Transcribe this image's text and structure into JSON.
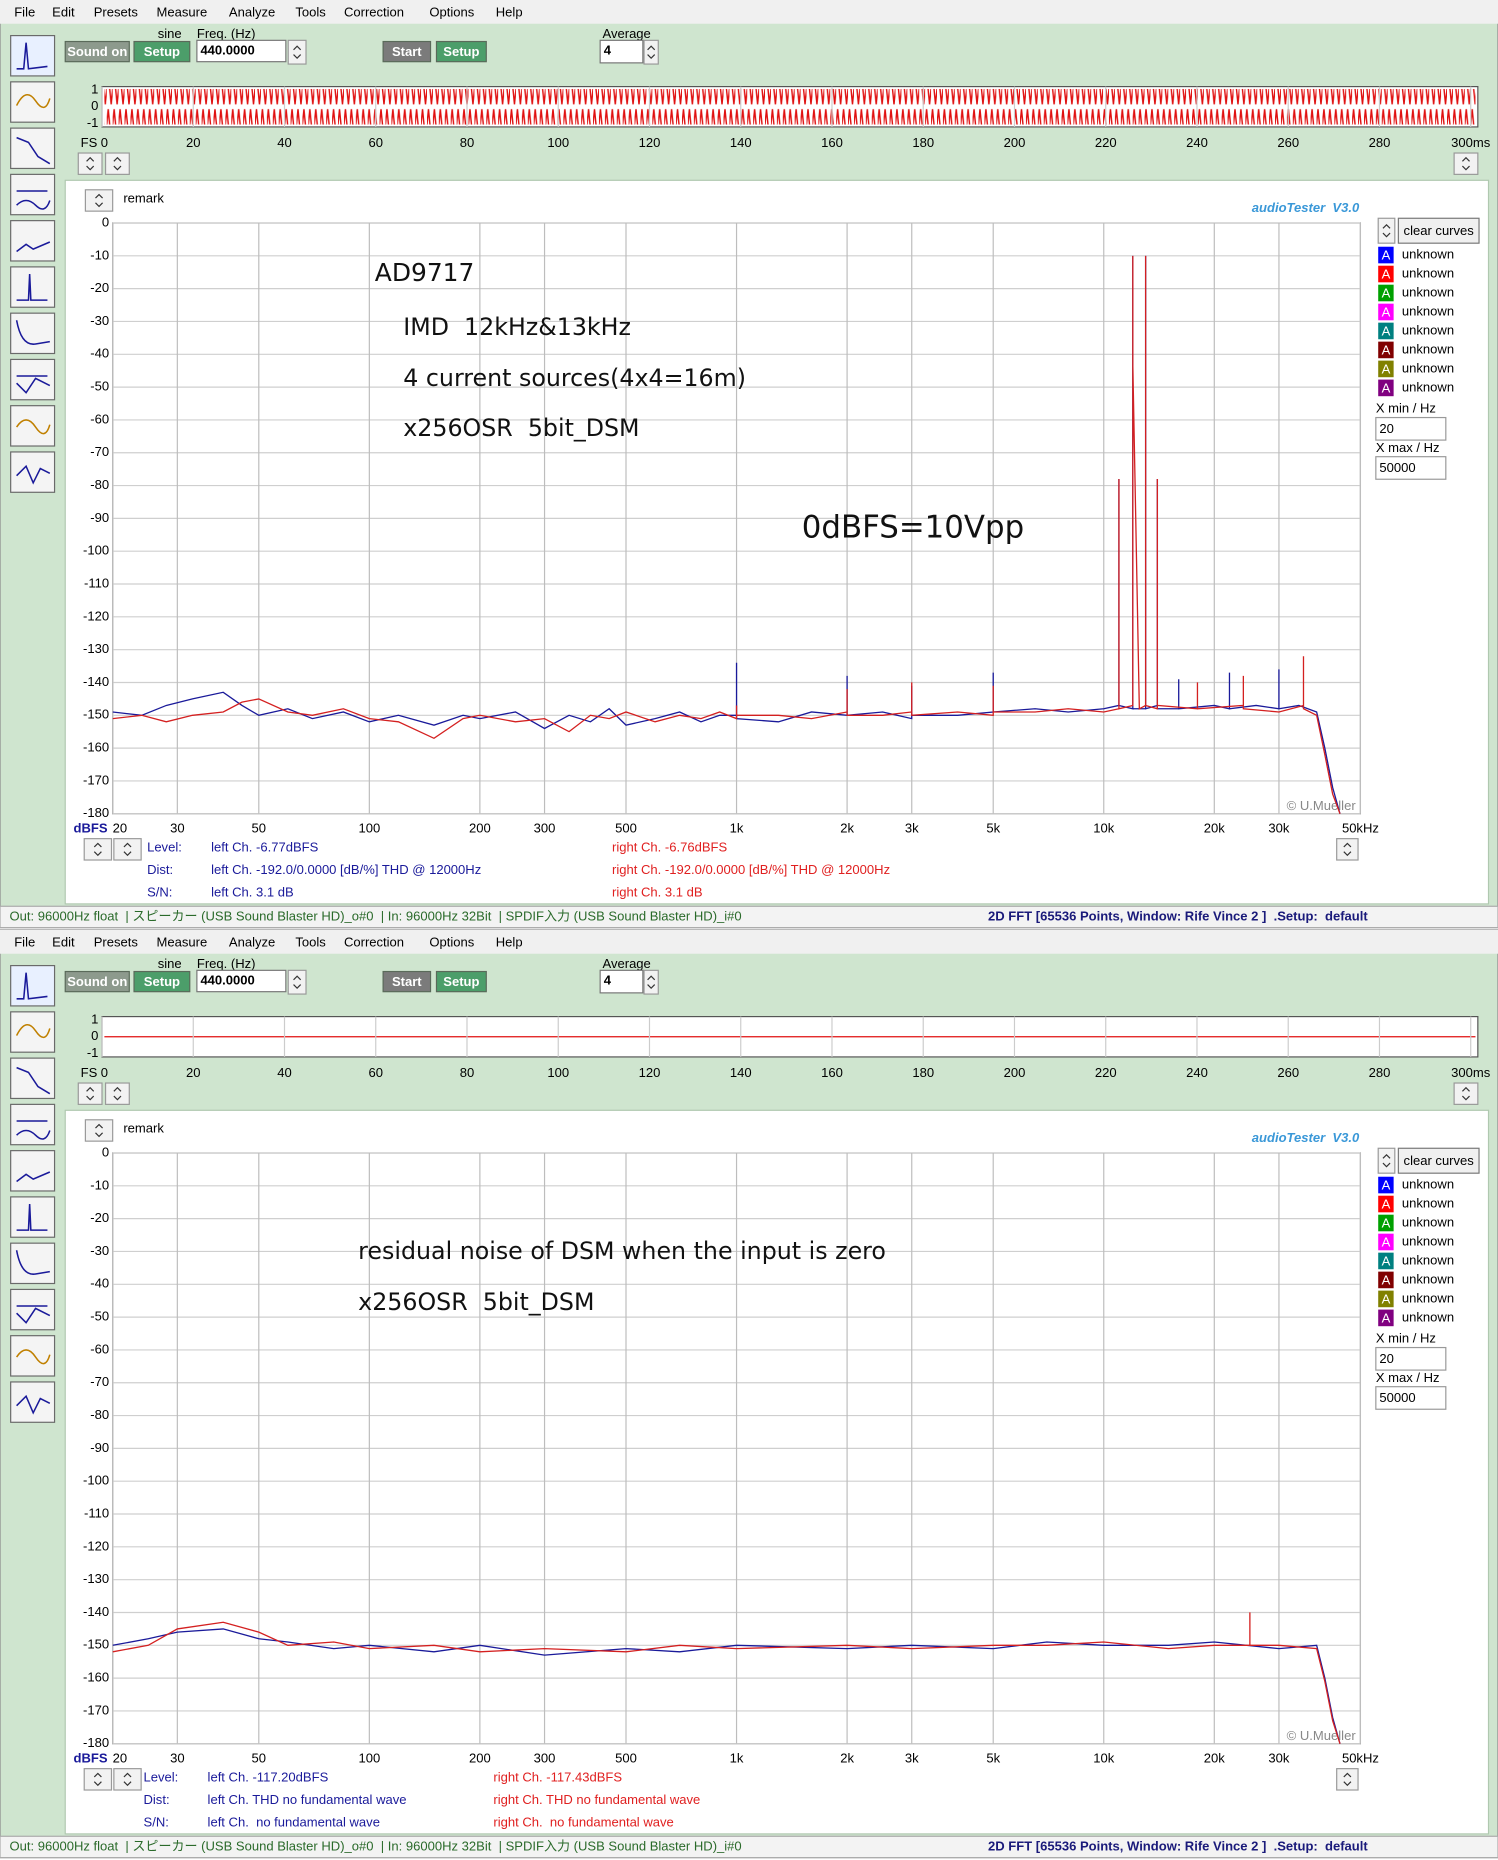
{
  "windows": [
    {
      "menu": [
        "File",
        "Edit",
        "Presets",
        "Measure",
        "Analyze",
        "Tools",
        "Correction",
        "Options",
        "Help"
      ],
      "toolbar": {
        "signal": "sine",
        "sound_on": "Sound on",
        "setup1": "Setup",
        "freq_label": "Freq. (Hz)",
        "freq": "440.0000",
        "start": "Start",
        "setup2": "Setup",
        "average_label": "Average",
        "average": "4"
      },
      "scope": {
        "ylim": [
          -1,
          1
        ],
        "yticks": [
          1,
          0,
          -1
        ],
        "xlabel": "FS",
        "xlim": [
          0,
          300
        ],
        "xticks": [
          0,
          20,
          40,
          60,
          80,
          100,
          120,
          140,
          160,
          180,
          200,
          220,
          240,
          260,
          280,
          {
            "value": 300,
            "label": "300ms"
          }
        ]
      },
      "fft": {
        "type": "line",
        "remark": "remark",
        "brand": "audioTester  V3.0",
        "ylabel": "dBFS",
        "copyright": "© U.Mueller",
        "log_x": true,
        "grid": true,
        "xlim": [
          20,
          50000
        ],
        "ylim": [
          -180,
          0
        ],
        "yticks": [
          0,
          -10,
          -20,
          -30,
          -40,
          -50,
          -60,
          -70,
          -80,
          -90,
          -100,
          -110,
          -120,
          -130,
          -140,
          -150,
          -160,
          -170,
          -180
        ],
        "xticks": [
          20,
          30,
          50,
          100,
          200,
          300,
          500,
          {
            "value": 1000,
            "label": "1k"
          },
          {
            "value": 2000,
            "label": "2k"
          },
          {
            "value": 3000,
            "label": "3k"
          },
          {
            "value": 5000,
            "label": "5k"
          },
          {
            "value": 10000,
            "label": "10k"
          },
          {
            "value": 20000,
            "label": "20k"
          },
          {
            "value": 30000,
            "label": "30k"
          },
          {
            "value": 50000,
            "label": "50kHz"
          }
        ],
        "annotations": [
          "AD9717",
          "IMD  12kHz&13kHz",
          "4 current sources(4x4=16m)",
          "x256OSR  5bit_DSM",
          "0dBFS=10Vpp"
        ],
        "series": [
          {
            "color": "#1a1a9a",
            "x": [
              20,
              24,
              28,
              33,
              40,
              45,
              50,
              60,
              70,
              85,
              100,
              120,
              150,
              180,
              200,
              250,
              300,
              350,
              400,
              450,
              500,
              600,
              700,
              800,
              900,
              1000,
              1000,
              1000,
              1300,
              1600,
              2000,
              2000,
              2000,
              2500,
              3000,
              3000,
              3000,
              4000,
              5000,
              5000,
              5000,
              6500,
              8000,
              10000,
              11000,
              11000,
              11000,
              12000,
              12000,
              12000,
              13000,
              13000,
              13000,
              14000,
              14000,
              14000,
              16000,
              16000,
              16000,
              20000,
              22000,
              22000,
              22000,
              26000,
              30000,
              30000,
              30000,
              34000,
              38000,
              40000,
              42000,
              44000
            ],
            "values": [
              -149,
              -150,
              -147,
              -145,
              -143,
              -147,
              -150,
              -148,
              -151,
              -149,
              -152,
              -150,
              -153,
              -150,
              -151,
              -149,
              -154,
              -150,
              -152,
              -148,
              -153,
              -151,
              -149,
              -152,
              -150,
              -150,
              -134,
              -151,
              -152,
              -149,
              -150,
              -138,
              -150,
              -149,
              -151,
              -141,
              -150,
              -150,
              -149,
              -137,
              -149,
              -148,
              -149,
              -148,
              -147,
              -78,
              -147,
              -148,
              -10,
              -148,
              -148,
              -10,
              -148,
              -147,
              -78,
              -148,
              -148,
              -139,
              -148,
              -147,
              -148,
              -137,
              -148,
              -147,
              -148,
              -136,
              -148,
              -147,
              -149,
              -160,
              -172,
              -180
            ]
          },
          {
            "color": "#d42020",
            "x": [
              20,
              24,
              28,
              33,
              40,
              45,
              50,
              60,
              70,
              85,
              100,
              120,
              150,
              180,
              200,
              250,
              300,
              350,
              400,
              450,
              500,
              600,
              700,
              800,
              900,
              1000,
              1000,
              1000,
              1300,
              1600,
              2000,
              2000,
              2000,
              2500,
              3000,
              3000,
              3000,
              4000,
              5000,
              5000,
              5000,
              6500,
              8000,
              10000,
              11000,
              11000,
              11000,
              12000,
              12000,
              12000,
              12500,
              13000,
              13000,
              13000,
              14000,
              14000,
              14000,
              18000,
              18000,
              18000,
              24000,
              24000,
              24000,
              30000,
              35000,
              35000,
              35000,
              38000,
              40000,
              42000,
              44000
            ],
            "values": [
              -151,
              -150,
              -152,
              -150,
              -149,
              -146,
              -145,
              -149,
              -150,
              -148,
              -151,
              -152,
              -157,
              -151,
              -150,
              -152,
              -151,
              -155,
              -150,
              -151,
              -149,
              -152,
              -150,
              -151,
              -149,
              -151,
              -147,
              -150,
              -150,
              -151,
              -149,
              -142,
              -150,
              -150,
              -149,
              -140,
              -150,
              -149,
              -150,
              -141,
              -149,
              -149,
              -148,
              -149,
              -148,
              -78,
              -148,
              -147,
              -10,
              -43,
              -148,
              -147,
              -10,
              -147,
              -148,
              -78,
              -147,
              -148,
              -140,
              -148,
              -147,
              -138,
              -148,
              -149,
              -147,
              -132,
              -148,
              -150,
              -162,
              -174,
              -180
            ]
          }
        ]
      },
      "legend": {
        "button": "clear curves",
        "entries": [
          {
            "letter": "A",
            "color": "#0000ff",
            "label": "unknown"
          },
          {
            "letter": "A",
            "color": "#ff0000",
            "label": "unknown"
          },
          {
            "letter": "A",
            "color": "#00a000",
            "label": "unknown"
          },
          {
            "letter": "A",
            "color": "#ff00ff",
            "label": "unknown"
          },
          {
            "letter": "A",
            "color": "#008080",
            "label": "unknown"
          },
          {
            "letter": "A",
            "color": "#800000",
            "label": "unknown"
          },
          {
            "letter": "A",
            "color": "#808000",
            "label": "unknown"
          },
          {
            "letter": "A",
            "color": "#800080",
            "label": "unknown"
          }
        ],
        "xmin_label": "X min / Hz",
        "xmin": "20",
        "xmax_label": "X max / Hz",
        "xmax": "50000"
      },
      "readout": [
        {
          "label": "Level:",
          "left": "left Ch. -6.77dBFS",
          "right": "right Ch. -6.76dBFS"
        },
        {
          "label": "Dist:",
          "left": "left Ch. -192.0/0.0000 [dB/%] THD @ 12000Hz",
          "right": "right Ch. -192.0/0.0000 [dB/%] THD @ 12000Hz"
        },
        {
          "label": "S/N:",
          "left": "left Ch. 3.1 dB",
          "right": "right Ch. 3.1 dB"
        }
      ],
      "status": {
        "left": "Out: 96000Hz float  | スピーカー (USB Sound Blaster HD)_o#0  | In: 96000Hz 32Bit  | SPDIF入力 (USB Sound Blaster HD)_i#0",
        "right": "2D FFT [65536 Points, Window: Rife Vince 2 ]  .Setup:  default"
      }
    },
    {
      "menu": [
        "File",
        "Edit",
        "Presets",
        "Measure",
        "Analyze",
        "Tools",
        "Correction",
        "Options",
        "Help"
      ],
      "toolbar": {
        "signal": "sine",
        "sound_on": "Sound on",
        "setup1": "Setup",
        "freq_label": "Freq. (Hz)",
        "freq": "440.0000",
        "start": "Start",
        "setup2": "Setup",
        "average_label": "Average",
        "average": "4"
      },
      "scope": {
        "ylim": [
          -1,
          1
        ],
        "yticks": [
          1,
          0,
          -1
        ],
        "xlabel": "FS",
        "xlim": [
          0,
          300
        ],
        "xticks": [
          0,
          20,
          40,
          60,
          80,
          100,
          120,
          140,
          160,
          180,
          200,
          220,
          240,
          260,
          280,
          {
            "value": 300,
            "label": "300ms"
          }
        ]
      },
      "fft": {
        "type": "line",
        "remark": "remark",
        "brand": "audioTester  V3.0",
        "ylabel": "dBFS",
        "copyright": "© U.Mueller",
        "log_x": true,
        "grid": true,
        "xlim": [
          20,
          50000
        ],
        "ylim": [
          -180,
          0
        ],
        "yticks": [
          0,
          -10,
          -20,
          -30,
          -40,
          -50,
          -60,
          -70,
          -80,
          -90,
          -100,
          -110,
          -120,
          -130,
          -140,
          -150,
          -160,
          -170,
          -180
        ],
        "xticks": [
          20,
          30,
          50,
          100,
          200,
          300,
          500,
          {
            "value": 1000,
            "label": "1k"
          },
          {
            "value": 2000,
            "label": "2k"
          },
          {
            "value": 3000,
            "label": "3k"
          },
          {
            "value": 5000,
            "label": "5k"
          },
          {
            "value": 10000,
            "label": "10k"
          },
          {
            "value": 20000,
            "label": "20k"
          },
          {
            "value": 30000,
            "label": "30k"
          },
          {
            "value": 50000,
            "label": "50kHz"
          }
        ],
        "annotations": [
          "residual noise of DSM when the input is zero",
          "x256OSR  5bit_DSM"
        ],
        "series": [
          {
            "color": "#1a1a9a",
            "x": [
              20,
              25,
              30,
              40,
              50,
              60,
              80,
              100,
              150,
              200,
              300,
              500,
              700,
              1000,
              2000,
              3000,
              5000,
              7000,
              10000,
              15000,
              20000,
              30000,
              38000,
              40000,
              42000,
              44000
            ],
            "values": [
              -150,
              -148,
              -146,
              -145,
              -148,
              -149,
              -151,
              -150,
              -152,
              -150,
              -153,
              -151,
              -152,
              -150,
              -151,
              -150,
              -151,
              -149,
              -150,
              -150,
              -149,
              -151,
              -150,
              -160,
              -172,
              -180
            ]
          },
          {
            "color": "#d42020",
            "x": [
              20,
              25,
              30,
              40,
              50,
              60,
              80,
              100,
              150,
              200,
              300,
              500,
              700,
              1000,
              2000,
              3000,
              5000,
              7000,
              10000,
              15000,
              20000,
              25000,
              25000,
              25000,
              30000,
              38000,
              40000,
              42000,
              44000
            ],
            "values": [
              -152,
              -150,
              -145,
              -143,
              -146,
              -150,
              -149,
              -151,
              -150,
              -152,
              -151,
              -152,
              -150,
              -151,
              -150,
              -151,
              -150,
              -150,
              -149,
              -151,
              -150,
              -150,
              -140,
              -150,
              -150,
              -151,
              -161,
              -173,
              -180
            ]
          }
        ]
      },
      "legend": {
        "button": "clear curves",
        "entries": [
          {
            "letter": "A",
            "color": "#0000ff",
            "label": "unknown"
          },
          {
            "letter": "A",
            "color": "#ff0000",
            "label": "unknown"
          },
          {
            "letter": "A",
            "color": "#00a000",
            "label": "unknown"
          },
          {
            "letter": "A",
            "color": "#ff00ff",
            "label": "unknown"
          },
          {
            "letter": "A",
            "color": "#008080",
            "label": "unknown"
          },
          {
            "letter": "A",
            "color": "#800000",
            "label": "unknown"
          },
          {
            "letter": "A",
            "color": "#808000",
            "label": "unknown"
          },
          {
            "letter": "A",
            "color": "#800080",
            "label": "unknown"
          }
        ],
        "xmin_label": "X min / Hz",
        "xmin": "20",
        "xmax_label": "X max / Hz",
        "xmax": "50000"
      },
      "readout": [
        {
          "label": "Level:",
          "left": "left Ch. -117.20dBFS",
          "right": "right Ch. -117.43dBFS"
        },
        {
          "label": "Dist:",
          "left": "left Ch. THD no fundamental wave",
          "right": "right Ch. THD no fundamental wave"
        },
        {
          "label": "S/N:",
          "left": "left Ch.  no fundamental wave",
          "right": "right Ch.  no fundamental wave"
        }
      ],
      "status": {
        "left": "Out: 96000Hz float  | スピーカー (USB Sound Blaster HD)_o#0  | In: 96000Hz 32Bit  | SPDIF入力 (USB Sound Blaster HD)_i#0",
        "right": "2D FFT [65536 Points, Window: Rife Vince 2 ]  .Setup:  default"
      }
    }
  ]
}
